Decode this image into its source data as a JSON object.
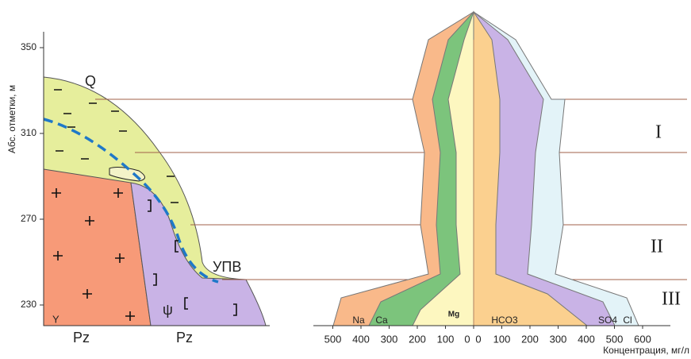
{
  "y_axis": {
    "label": "Абс. отметки, м",
    "ticks": [
      350,
      310,
      270,
      230
    ]
  },
  "x_axis": {
    "label": "Концентрация, мг/л",
    "left_ticks": [
      500,
      400,
      300,
      200,
      100,
      0
    ],
    "right_ticks": [
      0,
      100,
      200,
      300,
      400,
      500,
      600
    ]
  },
  "section_labels": {
    "quaternary": "Q",
    "water_table": "УПВ",
    "paleozoic_left": "Pz",
    "paleozoic_right": "Pz",
    "granite": "Y",
    "ultrabasic": "ψ"
  },
  "zones": [
    "I",
    "II",
    "III"
  ],
  "ions": [
    "Na",
    "Ca",
    "Mg",
    "HCO3",
    "SO4",
    "Cl"
  ]
}
